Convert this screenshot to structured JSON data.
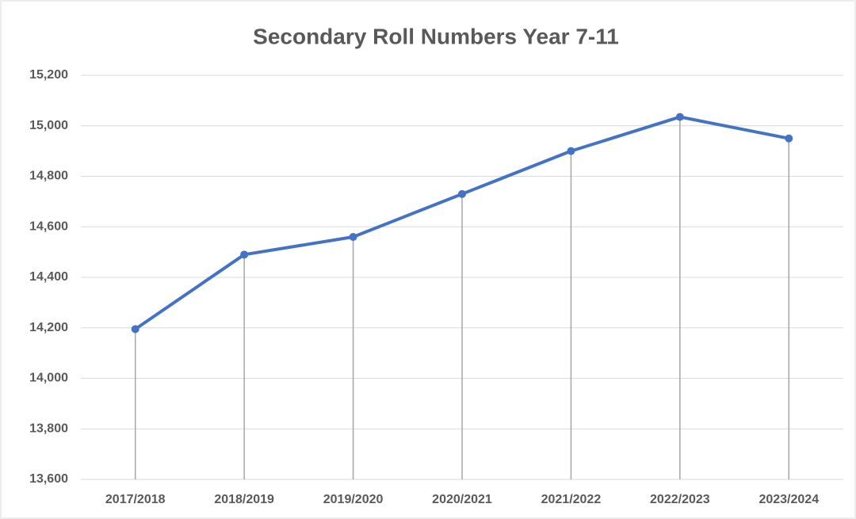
{
  "chart_data": {
    "type": "line",
    "title": "Secondary Roll Numbers Year 7-11",
    "categories": [
      "2017/2018",
      "2018/2019",
      "2019/2020",
      "2020/2021",
      "2021/2022",
      "2022/2023",
      "2023/2024"
    ],
    "values": [
      14195,
      14490,
      14560,
      14730,
      14900,
      15035,
      14950
    ],
    "color": "#4472c4",
    "ylim": [
      13600,
      15200
    ],
    "yticks": [
      {
        "value": 13600,
        "label": "13,600"
      },
      {
        "value": 13800,
        "label": "13,800"
      },
      {
        "value": 14000,
        "label": "14,000"
      },
      {
        "value": 14200,
        "label": "14,200"
      },
      {
        "value": 14400,
        "label": "14,400"
      },
      {
        "value": 14600,
        "label": "14,600"
      },
      {
        "value": 14800,
        "label": "14,800"
      },
      {
        "value": 15000,
        "label": "15,000"
      },
      {
        "value": 15200,
        "label": "15,200"
      }
    ],
    "grid": true,
    "drop_lines": true
  }
}
